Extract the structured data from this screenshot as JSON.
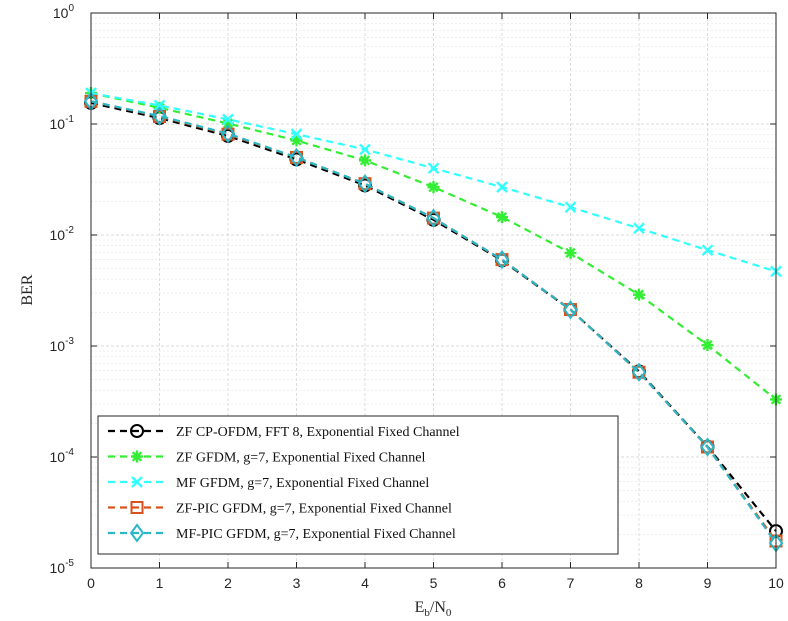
{
  "chart_data": {
    "type": "line",
    "title": "",
    "xlabel": "E_b/N_0",
    "xlabel_parts": {
      "main1": "E",
      "sub1": "b",
      "sep": "/N",
      "sub2": "0"
    },
    "ylabel": "BER",
    "x": [
      0,
      1,
      2,
      3,
      4,
      5,
      6,
      7,
      8,
      9,
      10
    ],
    "xlim": [
      0,
      10
    ],
    "ylim": [
      1e-05,
      1
    ],
    "yscale": "log",
    "grid": true,
    "minor_grid": true,
    "legend_position": "bottom-left",
    "x_ticks": [
      "0",
      "1",
      "2",
      "3",
      "4",
      "5",
      "6",
      "7",
      "8",
      "9",
      "10"
    ],
    "y_ticks": [
      {
        "value": 1,
        "base": "10",
        "exp": "0"
      },
      {
        "value": 0.1,
        "base": "10",
        "exp": "-1"
      },
      {
        "value": 0.01,
        "base": "10",
        "exp": "-2"
      },
      {
        "value": 0.001,
        "base": "10",
        "exp": "-3"
      },
      {
        "value": 0.0001,
        "base": "10",
        "exp": "-4"
      },
      {
        "value": 1e-05,
        "base": "10",
        "exp": "-5"
      }
    ],
    "series": [
      {
        "name": "ZF CP-OFDM, FFT 8, Exponential Fixed Channel",
        "color": "#000000",
        "marker": "circle",
        "values": [
          0.155,
          0.113,
          0.078,
          0.048,
          0.028,
          0.0137,
          0.0059,
          0.00212,
          0.00059,
          0.000124,
          2.15e-05
        ]
      },
      {
        "name": "ZF GFDM, g=7, Exponential Fixed Channel",
        "color": "#33ee33",
        "marker": "asterisk",
        "values": [
          0.19,
          0.14,
          0.101,
          0.071,
          0.047,
          0.027,
          0.0145,
          0.0069,
          0.0029,
          0.00102,
          0.00033
        ]
      },
      {
        "name": "MF GFDM, g=7, Exponential Fixed Channel",
        "color": "#33ffff",
        "marker": "x",
        "values": [
          0.19,
          0.147,
          0.11,
          0.081,
          0.059,
          0.04,
          0.027,
          0.0178,
          0.0115,
          0.0073,
          0.0047
        ]
      },
      {
        "name": "ZF-PIC GFDM, g=7, Exponential Fixed Channel",
        "color": "#d9531e",
        "marker": "square",
        "values": [
          0.16,
          0.117,
          0.081,
          0.05,
          0.029,
          0.0142,
          0.006,
          0.00213,
          0.00058,
          0.000123,
          1.75e-05
        ]
      },
      {
        "name": "MF-PIC GFDM, g=7, Exponential Fixed Channel",
        "color": "#2ab7c6",
        "marker": "diamond",
        "values": [
          0.16,
          0.118,
          0.082,
          0.05,
          0.029,
          0.0142,
          0.006,
          0.00212,
          0.00058,
          0.000123,
          1.68e-05
        ]
      }
    ]
  }
}
